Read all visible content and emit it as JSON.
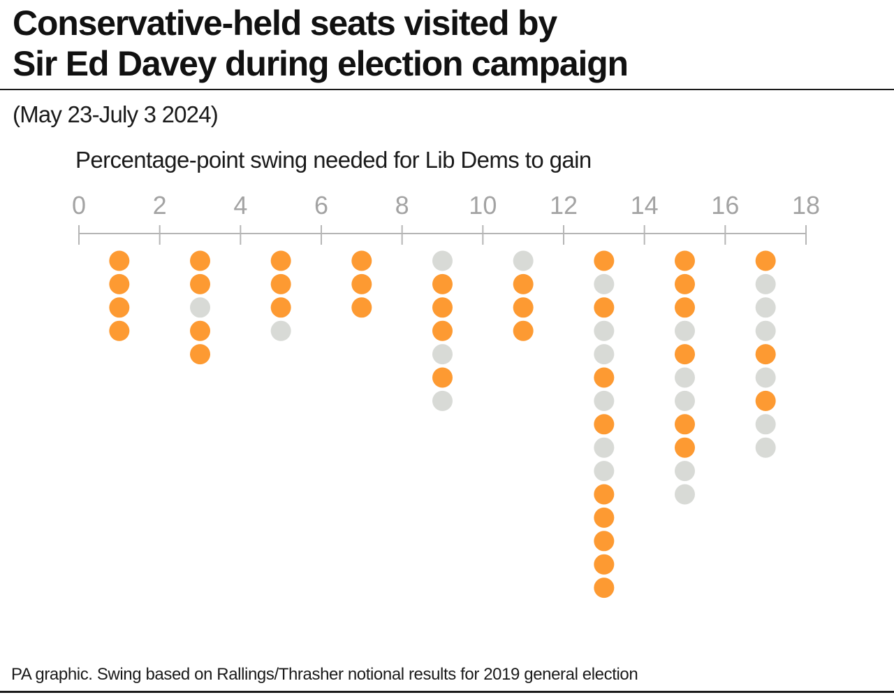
{
  "header": {
    "title_line1": "Conservative-held seats visited by",
    "title_line2": "Sir Ed Davey during election campaign",
    "subtitle": "(May 23-July 3 2024)"
  },
  "footer": {
    "source": "PA graphic. Swing based on Rallings/Thrasher notional results for 2019 general election"
  },
  "colors": {
    "orange": "#fd9a32",
    "grey": "#d8dad6",
    "axis": "#b5b5b5"
  },
  "chart_data": {
    "type": "scatter",
    "subtype": "stacked-dot-column",
    "title": "Conservative-held seats visited by Sir Ed Davey during election campaign",
    "subtitle": "(May 23-July 3 2024)",
    "xlabel": "Percentage-point swing needed for Lib Dems to gain",
    "ylabel": "",
    "xlim": [
      0,
      18
    ],
    "x_ticks": [
      "0",
      "2",
      "4",
      "6",
      "8",
      "10",
      "12",
      "14",
      "16",
      "18"
    ],
    "grid": false,
    "legend": "none",
    "columns": [
      {
        "range": [
          0,
          2
        ],
        "dots": [
          "orange",
          "orange",
          "orange",
          "orange"
        ]
      },
      {
        "range": [
          2,
          4
        ],
        "dots": [
          "orange",
          "orange",
          "grey",
          "orange",
          "orange"
        ]
      },
      {
        "range": [
          4,
          6
        ],
        "dots": [
          "orange",
          "orange",
          "orange",
          "grey"
        ]
      },
      {
        "range": [
          6,
          8
        ],
        "dots": [
          "orange",
          "orange",
          "orange"
        ]
      },
      {
        "range": [
          8,
          10
        ],
        "dots": [
          "grey",
          "orange",
          "orange",
          "orange",
          "grey",
          "orange",
          "grey"
        ]
      },
      {
        "range": [
          10,
          12
        ],
        "dots": [
          "grey",
          "orange",
          "orange",
          "orange"
        ]
      },
      {
        "range": [
          12,
          14
        ],
        "dots": [
          "orange",
          "grey",
          "orange",
          "grey",
          "grey",
          "orange",
          "grey",
          "orange",
          "grey",
          "grey",
          "orange",
          "orange",
          "orange",
          "orange",
          "orange"
        ]
      },
      {
        "range": [
          14,
          16
        ],
        "dots": [
          "orange",
          "orange",
          "orange",
          "grey",
          "orange",
          "grey",
          "grey",
          "orange",
          "orange",
          "grey",
          "grey"
        ]
      },
      {
        "range": [
          16,
          18
        ],
        "dots": [
          "orange",
          "grey",
          "grey",
          "grey",
          "orange",
          "grey",
          "orange",
          "grey",
          "grey"
        ]
      }
    ]
  }
}
